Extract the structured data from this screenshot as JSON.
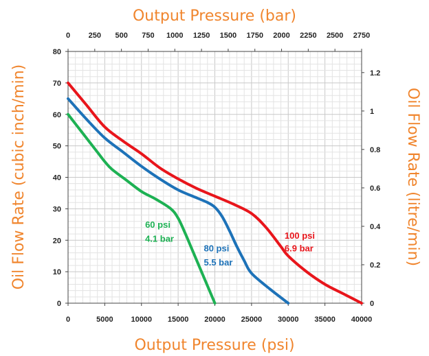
{
  "chart_data": {
    "type": "line",
    "title": "",
    "x_top_label": "Output Pressure (bar)",
    "x_bottom_label": "Output Pressure (psi)",
    "y_left_label": "Oil Flow Rate (cubic inch/min)",
    "y_right_label": "Oil Flow Rate (litre/min)",
    "x_bottom_range": [
      0,
      40000
    ],
    "x_bottom_ticks": [
      "0",
      "5000",
      "10000",
      "15000",
      "20000",
      "25000",
      "30000",
      "35000",
      "40000"
    ],
    "x_top_range": [
      0,
      2750
    ],
    "x_top_ticks": [
      "0",
      "250",
      "500",
      "750",
      "1000",
      "1250",
      "1500",
      "1750",
      "2000",
      "2250",
      "2500",
      "2750"
    ],
    "y_left_range": [
      0,
      80
    ],
    "y_left_ticks": [
      "0",
      "10",
      "20",
      "30",
      "40",
      "50",
      "60",
      "70",
      "80"
    ],
    "y_right_range": [
      0,
      1.31
    ],
    "y_right_ticks": [
      "0",
      "0.2",
      "0.4",
      "0.6",
      "0.8",
      "1",
      "1.2"
    ],
    "grid": true,
    "series": [
      {
        "name": "60 psi",
        "sublabel": "4.1 bar",
        "color": "#1db153",
        "x": [
          0,
          2000,
          4000,
          5000,
          6000,
          8000,
          10000,
          12000,
          14000,
          15000,
          16000,
          17000,
          18000,
          19000,
          20000
        ],
        "y": [
          60,
          54,
          48,
          45,
          42.5,
          39,
          35.5,
          33,
          30,
          27,
          22,
          16.5,
          11,
          5.5,
          0
        ]
      },
      {
        "name": "80 psi",
        "sublabel": "5.5 bar",
        "color": "#1d72b8",
        "x": [
          0,
          2500,
          5000,
          7500,
          10000,
          12500,
          15000,
          17500,
          19000,
          20000,
          21000,
          22000,
          23000,
          24000,
          25000,
          27500,
          30000
        ],
        "y": [
          65,
          58.5,
          52.5,
          48,
          43.5,
          39.5,
          36,
          33.5,
          32,
          30.5,
          27.5,
          23,
          18,
          13.5,
          9.5,
          4.5,
          0
        ]
      },
      {
        "name": "100 psi",
        "sublabel": "6.9 bar",
        "color": "#e8151b",
        "x": [
          0,
          2500,
          5000,
          7500,
          10000,
          12500,
          15000,
          17500,
          20000,
          22500,
          25000,
          27000,
          29000,
          30000,
          32500,
          35000,
          37500,
          40000
        ],
        "y": [
          70,
          63,
          56,
          51.5,
          47.5,
          43,
          39.5,
          36.5,
          34,
          31.5,
          28.5,
          24,
          18,
          15,
          10,
          6,
          3,
          0
        ]
      }
    ]
  }
}
